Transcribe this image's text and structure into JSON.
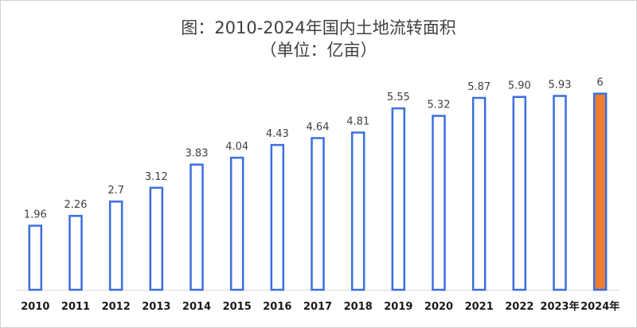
{
  "chart": {
    "title": "图：2010-2024年国内土地流转面积",
    "subtitle": "（单位：亿亩）"
  },
  "chart_data": {
    "type": "bar",
    "title": "图：2010-2024年国内土地流转面积",
    "subtitle": "（单位：亿亩）",
    "categories": [
      "2010",
      "2011",
      "2012",
      "2013",
      "2014",
      "2015",
      "2016",
      "2017",
      "2018",
      "2019",
      "2020",
      "2021",
      "2022",
      "2023年",
      "2024年"
    ],
    "values": [
      1.96,
      2.26,
      2.7,
      3.12,
      3.83,
      4.04,
      4.43,
      4.64,
      4.81,
      5.55,
      5.32,
      5.87,
      5.9,
      5.93,
      6
    ],
    "value_labels": [
      "1.96",
      "2.26",
      "2.7",
      "3.12",
      "3.83",
      "4.04",
      "4.43",
      "4.64",
      "4.81",
      "5.55",
      "5.32",
      "5.87",
      "5.90",
      "5.93",
      "6"
    ],
    "xlabel": "",
    "ylabel": "",
    "ylim": [
      0,
      6.6
    ],
    "grid": false,
    "legend": "none",
    "colors": {
      "bar_outline": "#3a6fe0",
      "bar_fill": "#ffffff",
      "highlight_fill": "#ed7d31",
      "highlight_outline": "#3a6fe0",
      "axis": "#d9d9d9",
      "label": "#404040"
    },
    "highlight_index": 14
  }
}
